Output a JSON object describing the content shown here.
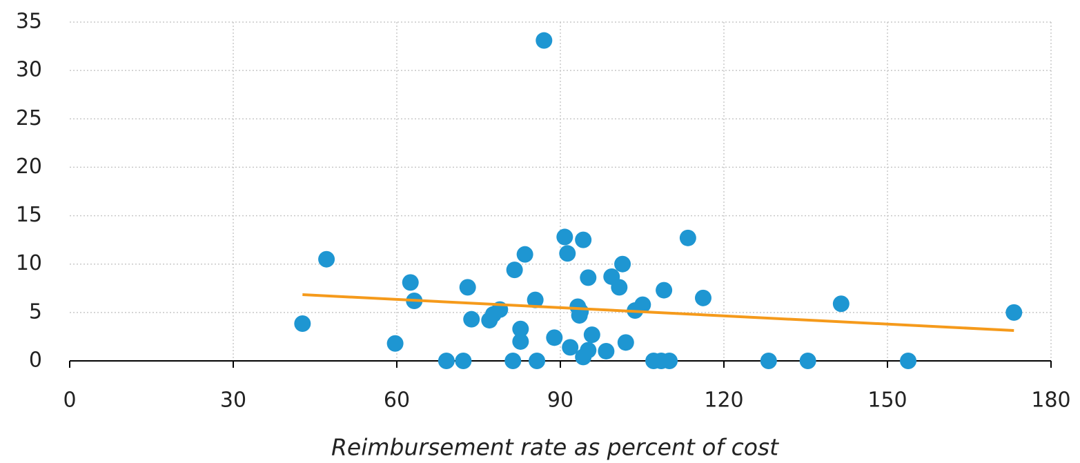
{
  "chart_data": {
    "type": "scatter",
    "x_label": "Reimbursement rate as percent of cost",
    "xlim": [
      0,
      180
    ],
    "xticks": [
      0,
      30,
      60,
      90,
      120,
      150,
      180
    ],
    "ylim": [
      0,
      35
    ],
    "yticks": [
      0,
      5,
      10,
      15,
      20,
      25,
      30,
      35
    ],
    "grid": true,
    "color": "#1e96d2",
    "x": [
      42.7,
      47.1,
      59.7,
      62.5,
      63.2,
      69.1,
      72.2,
      73.0,
      73.7,
      77.0,
      77.7,
      78.9,
      81.3,
      81.6,
      82.7,
      82.7,
      83.5,
      85.4,
      85.7,
      87.0,
      88.9,
      90.8,
      91.3,
      91.8,
      93.2,
      93.5,
      93.7,
      94.2,
      94.2,
      95.1,
      95.1,
      95.8,
      98.4,
      99.4,
      100.8,
      101.4,
      102.0,
      103.7,
      105.1,
      107.1,
      108.5,
      109.0,
      110.0,
      113.4,
      116.2,
      128.2,
      135.4,
      141.5,
      153.8,
      173.2
    ],
    "values": [
      3.85,
      10.5,
      1.8,
      8.1,
      6.2,
      0,
      0,
      7.6,
      4.3,
      4.2,
      4.8,
      5.3,
      0,
      9.4,
      3.3,
      2.0,
      11.0,
      6.3,
      0,
      33.1,
      2.4,
      12.8,
      11.1,
      1.4,
      5.6,
      4.7,
      5.1,
      12.5,
      0.4,
      1.1,
      8.6,
      2.7,
      1.0,
      8.7,
      7.6,
      10.0,
      1.9,
      5.2,
      5.8,
      0,
      0,
      7.3,
      0,
      12.7,
      6.5,
      0,
      0,
      5.9,
      0,
      5.0
    ],
    "trendline": {
      "x": [
        42.7,
        173.2
      ],
      "values": [
        6.84,
        3.14
      ],
      "color": "#f59a1b"
    }
  }
}
